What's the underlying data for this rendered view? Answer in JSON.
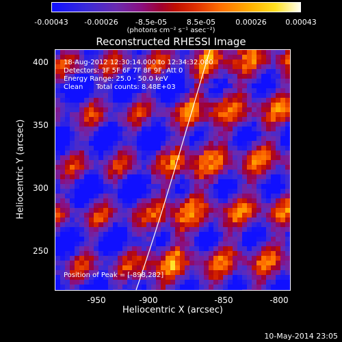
{
  "colorbar": {
    "ticks": [
      "-0.00043",
      "-0.00026",
      "-8.5e-05",
      "8.5e-05",
      "0.00026",
      "0.00043"
    ],
    "unit": "(photons cm⁻² s⁻¹ asec⁻²)"
  },
  "title": "Reconstructed RHESSI Image",
  "annotations": {
    "time": "18-Aug-2012 12:30:14.000 to 12:34:32.000",
    "detectors": "Detectors: 3F 5F 6F 7F 8F 9F, Att 0",
    "energy": "Energy Range: 25.0 - 50.0 keV",
    "method": "Clean      Total counts: 8.48E+03",
    "peak": "Position of Peak = [-898,282]"
  },
  "axes": {
    "xlabel": "Heliocentric X (arcsec)",
    "ylabel": "Heliocentric Y (arcsec)",
    "xticks": [
      "-950",
      "-900",
      "-850",
      "-800"
    ],
    "yticks": [
      "400",
      "350",
      "300",
      "250"
    ],
    "xlim": [
      -978,
      -790
    ],
    "ylim": [
      215,
      408
    ]
  },
  "footer": "10-May-2014 23:05"
}
